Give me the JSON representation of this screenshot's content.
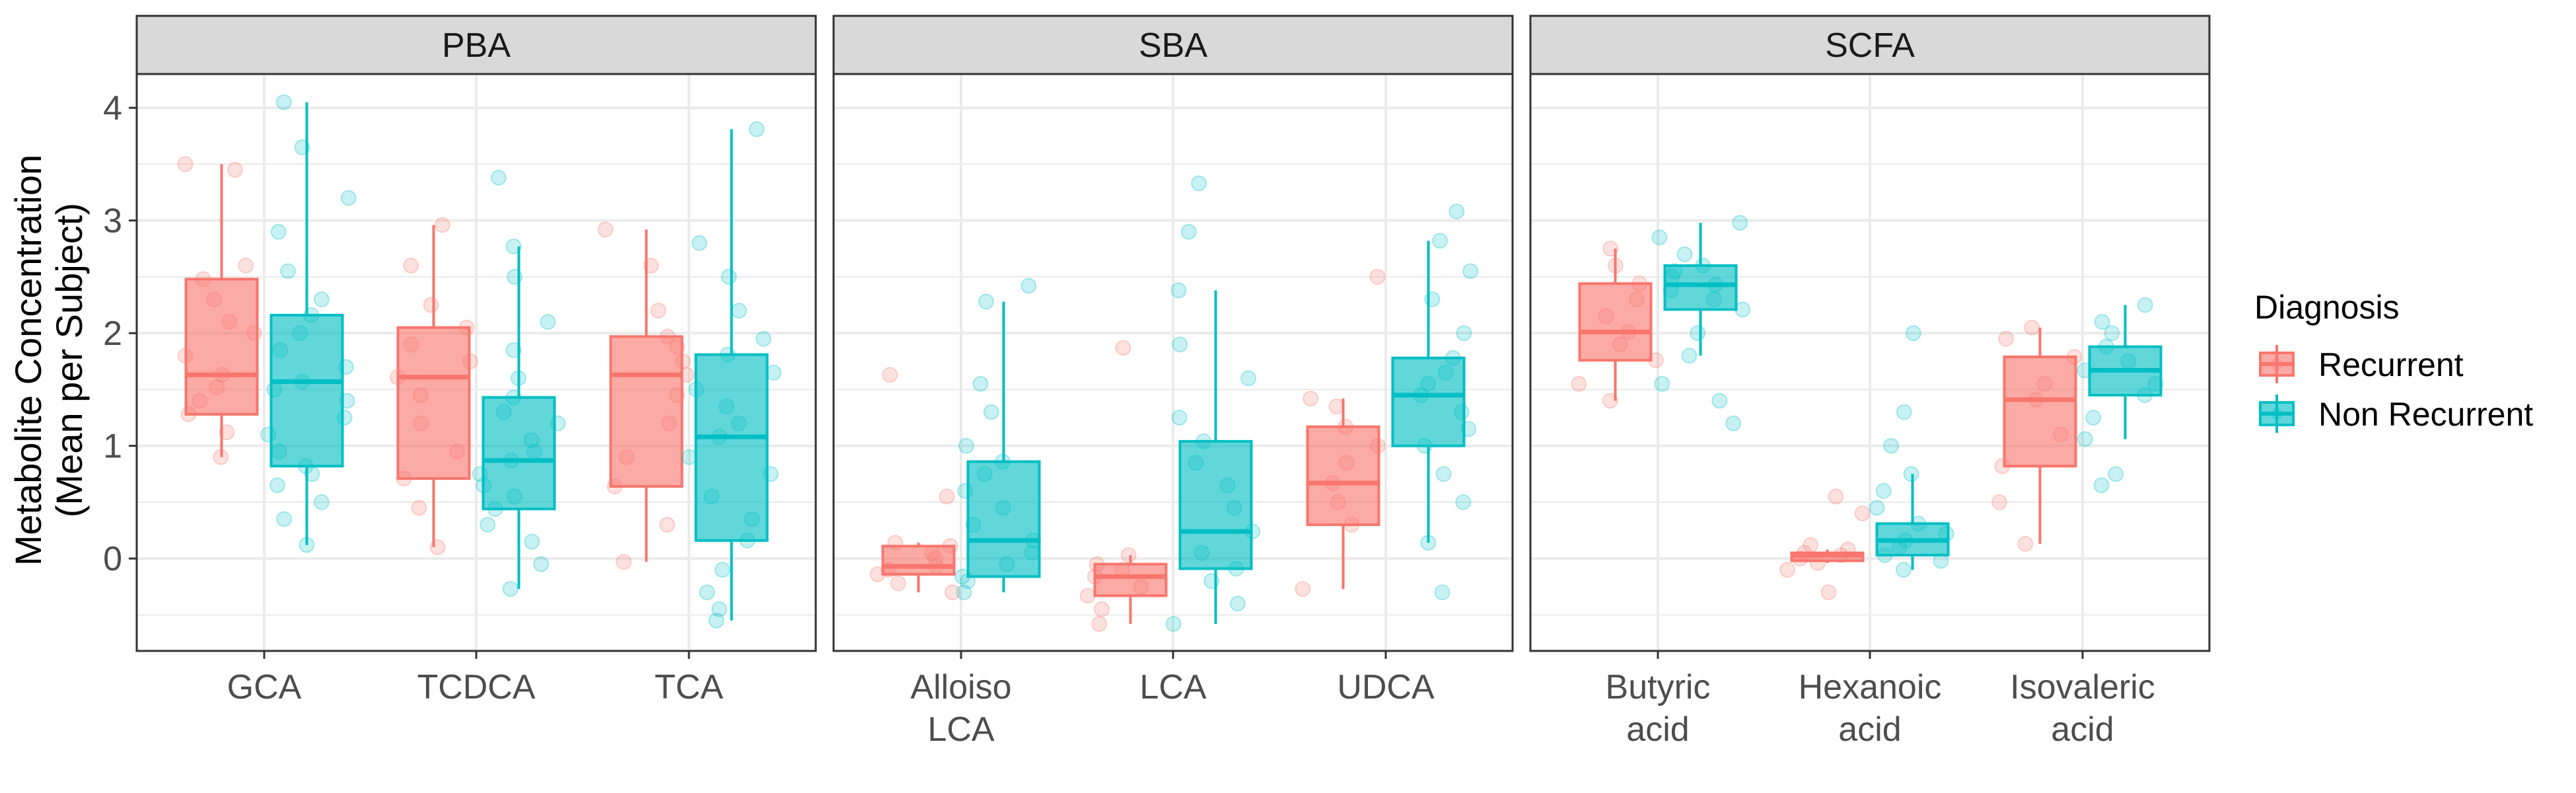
{
  "chart_data": {
    "type": "boxplot",
    "ylabel_lines": [
      "Metabolite Concentration",
      "(Mean per Subject)"
    ],
    "yticks": [
      0,
      1,
      2,
      3,
      4
    ],
    "ylim": [
      -0.82,
      4.3
    ],
    "grid": true,
    "legend": {
      "title": "Diagnosis",
      "placement": "right",
      "entries": [
        {
          "key": "recurrent",
          "label": "Recurrent"
        },
        {
          "key": "non_recurrent",
          "label": "Non Recurrent"
        }
      ]
    },
    "colors": {
      "recurrent_line": "#F8766D",
      "recurrent_fill": "#F8766D",
      "non_recurrent_line": "#00BFC4",
      "non_recurrent_fill": "#00BFC4",
      "strip": "#d9d9d9",
      "grid": "#ebebeb",
      "panel_border": "#333333"
    },
    "panels": [
      {
        "title": "PBA",
        "categories": [
          {
            "label_lines": [
              "GCA"
            ],
            "recurrent": {
              "lower": 0.9,
              "q1": 1.28,
              "median": 1.63,
              "q3": 2.48,
              "upper": 3.5,
              "points": [
                0.9,
                1.12,
                1.28,
                1.4,
                1.52,
                1.63,
                1.8,
                2.0,
                2.1,
                2.3,
                2.48,
                2.6,
                3.45,
                3.5
              ]
            },
            "non_recurrent": {
              "lower": 0.12,
              "q1": 0.82,
              "median": 1.57,
              "q3": 2.16,
              "upper": 4.05,
              "points": [
                0.12,
                0.35,
                0.5,
                0.65,
                0.75,
                0.82,
                0.95,
                1.1,
                1.25,
                1.4,
                1.5,
                1.57,
                1.7,
                1.85,
                2.0,
                2.16,
                2.3,
                2.55,
                2.9,
                3.2,
                3.65,
                4.05
              ]
            }
          },
          {
            "label_lines": [
              "TCDCA"
            ],
            "recurrent": {
              "lower": 0.1,
              "q1": 0.71,
              "median": 1.61,
              "q3": 2.05,
              "upper": 2.96,
              "points": [
                0.1,
                0.45,
                0.71,
                0.95,
                1.2,
                1.45,
                1.61,
                1.75,
                1.9,
                2.05,
                2.25,
                2.6,
                2.96
              ]
            },
            "non_recurrent": {
              "lower": -0.27,
              "q1": 0.44,
              "median": 0.87,
              "q3": 1.43,
              "upper": 2.77,
              "points": [
                -0.27,
                -0.05,
                0.15,
                0.3,
                0.44,
                0.55,
                0.65,
                0.75,
                0.87,
                0.95,
                1.05,
                1.2,
                1.3,
                1.43,
                1.6,
                1.85,
                2.1,
                2.5,
                2.77,
                3.38
              ]
            }
          },
          {
            "label_lines": [
              "TCA"
            ],
            "recurrent": {
              "lower": -0.03,
              "q1": 0.64,
              "median": 1.63,
              "q3": 1.97,
              "upper": 2.92,
              "points": [
                -0.03,
                0.3,
                0.64,
                0.9,
                1.2,
                1.45,
                1.63,
                1.75,
                1.88,
                1.97,
                2.2,
                2.6,
                2.92
              ]
            },
            "non_recurrent": {
              "lower": -0.55,
              "q1": 0.16,
              "median": 1.08,
              "q3": 1.81,
              "upper": 3.81,
              "points": [
                -0.55,
                -0.45,
                -0.3,
                -0.1,
                0.16,
                0.35,
                0.55,
                0.75,
                0.9,
                1.08,
                1.2,
                1.35,
                1.5,
                1.65,
                1.81,
                1.95,
                2.2,
                2.5,
                2.8,
                3.81
              ]
            }
          }
        ]
      },
      {
        "title": "SBA",
        "categories": [
          {
            "label_lines": [
              "Alloiso",
              "LCA"
            ],
            "recurrent": {
              "lower": -0.3,
              "q1": -0.14,
              "median": -0.07,
              "q3": 0.11,
              "upper": 0.14,
              "points": [
                -0.3,
                -0.22,
                -0.14,
                -0.1,
                -0.07,
                0.0,
                0.05,
                0.11,
                0.14,
                0.55,
                1.63
              ]
            },
            "non_recurrent": {
              "lower": -0.3,
              "q1": -0.16,
              "median": 0.16,
              "q3": 0.86,
              "upper": 2.28,
              "points": [
                -0.3,
                -0.2,
                -0.16,
                -0.05,
                0.05,
                0.16,
                0.3,
                0.45,
                0.6,
                0.75,
                0.86,
                1.0,
                1.3,
                1.55,
                2.28,
                2.42
              ]
            }
          },
          {
            "label_lines": [
              "LCA"
            ],
            "recurrent": {
              "lower": -0.58,
              "q1": -0.33,
              "median": -0.16,
              "q3": -0.05,
              "upper": 0.03,
              "points": [
                -0.58,
                -0.45,
                -0.33,
                -0.25,
                -0.16,
                -0.1,
                -0.05,
                0.03,
                1.87
              ]
            },
            "non_recurrent": {
              "lower": -0.58,
              "q1": -0.09,
              "median": 0.24,
              "q3": 1.04,
              "upper": 2.38,
              "points": [
                -0.58,
                -0.4,
                -0.2,
                -0.09,
                0.05,
                0.24,
                0.45,
                0.65,
                0.85,
                1.04,
                1.25,
                1.6,
                1.9,
                2.38,
                2.9,
                3.33
              ]
            }
          },
          {
            "label_lines": [
              "UDCA"
            ],
            "recurrent": {
              "lower": -0.27,
              "q1": 0.3,
              "median": 0.67,
              "q3": 1.17,
              "upper": 1.42,
              "points": [
                -0.27,
                0.3,
                0.5,
                0.67,
                0.85,
                1.0,
                1.17,
                1.35,
                1.42,
                2.5
              ]
            },
            "non_recurrent": {
              "lower": 0.14,
              "q1": 1.0,
              "median": 1.45,
              "q3": 1.78,
              "upper": 2.82,
              "points": [
                -0.3,
                0.14,
                0.5,
                0.75,
                1.0,
                1.15,
                1.3,
                1.45,
                1.55,
                1.65,
                1.78,
                2.0,
                2.3,
                2.55,
                2.82,
                3.08
              ]
            }
          }
        ]
      },
      {
        "title": "SCFA",
        "categories": [
          {
            "label_lines": [
              "Butyric",
              "acid"
            ],
            "recurrent": {
              "lower": 1.4,
              "q1": 1.76,
              "median": 2.01,
              "q3": 2.44,
              "upper": 2.75,
              "points": [
                1.4,
                1.55,
                1.76,
                1.9,
                2.01,
                2.15,
                2.3,
                2.44,
                2.6,
                2.75
              ]
            },
            "non_recurrent": {
              "lower": 1.8,
              "q1": 2.21,
              "median": 2.43,
              "q3": 2.6,
              "upper": 2.98,
              "points": [
                1.2,
                1.4,
                1.55,
                1.8,
                2.0,
                2.21,
                2.3,
                2.38,
                2.43,
                2.5,
                2.55,
                2.6,
                2.7,
                2.85,
                2.98
              ]
            }
          },
          {
            "label_lines": [
              "Hexanoic",
              "acid"
            ],
            "recurrent": {
              "lower": -0.04,
              "q1": -0.02,
              "median": 0.03,
              "q3": 0.05,
              "upper": 0.08,
              "points": [
                -0.3,
                -0.1,
                -0.04,
                0.0,
                0.03,
                0.05,
                0.08,
                0.12,
                0.4,
                0.55
              ]
            },
            "non_recurrent": {
              "lower": -0.1,
              "q1": 0.03,
              "median": 0.16,
              "q3": 0.31,
              "upper": 0.75,
              "points": [
                -0.1,
                -0.02,
                0.03,
                0.1,
                0.16,
                0.22,
                0.31,
                0.45,
                0.6,
                0.75,
                1.0,
                1.3,
                2.0
              ]
            }
          },
          {
            "label_lines": [
              "Isovaleric",
              "acid"
            ],
            "recurrent": {
              "lower": 0.13,
              "q1": 0.82,
              "median": 1.41,
              "q3": 1.79,
              "upper": 2.05,
              "points": [
                0.13,
                0.5,
                0.82,
                1.1,
                1.41,
                1.55,
                1.79,
                1.95,
                2.05
              ]
            },
            "non_recurrent": {
              "lower": 1.06,
              "q1": 1.45,
              "median": 1.67,
              "q3": 1.88,
              "upper": 2.25,
              "points": [
                0.65,
                0.75,
                1.06,
                1.25,
                1.45,
                1.55,
                1.67,
                1.75,
                1.88,
                2.0,
                2.1,
                2.25
              ]
            }
          }
        ]
      }
    ]
  }
}
